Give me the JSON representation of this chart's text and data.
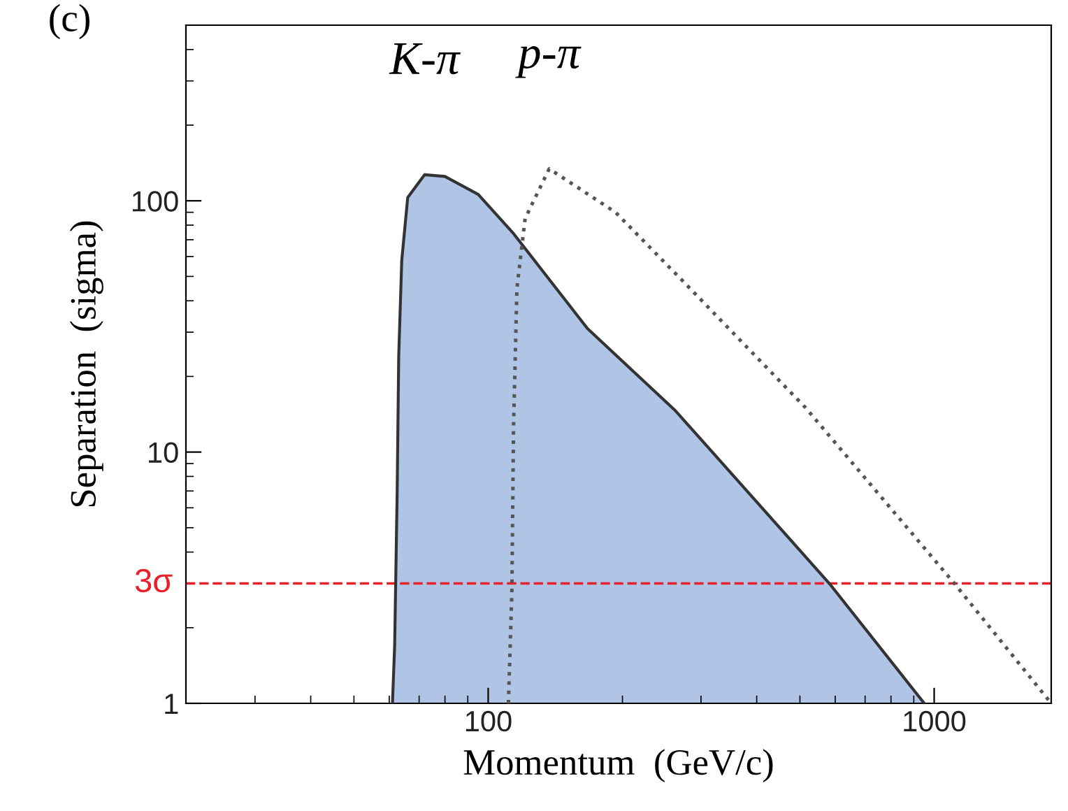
{
  "chart_data": {
    "type": "area",
    "xlabel": "Momentum  (GeV/c)",
    "ylabel": "Separation  (sigma)",
    "log": "xy",
    "xlim": [
      21,
      1830
    ],
    "ylim": [
      1,
      500
    ],
    "xticks": [
      100,
      1000
    ],
    "yticks": [
      1,
      10,
      100
    ],
    "grid": false,
    "legend": false,
    "annotations": [
      "(c)"
    ],
    "series": [
      {
        "name": "K-π",
        "color": "#b0c4e6",
        "line_style": "solid",
        "x": [
          61,
          61.7,
          62.5,
          63,
          64,
          66,
          72,
          80,
          95,
          114,
          167,
          263,
          582,
          950
        ],
        "values": [
          1,
          1.7,
          6.9,
          24,
          58,
          103,
          127,
          125,
          106,
          74,
          31,
          14.6,
          3,
          1
        ]
      },
      {
        "name": "p-π",
        "type": "line",
        "color": "#555555",
        "line_style": "dotted",
        "x": [
          111,
          113,
          114,
          116,
          121,
          137,
          193,
          273,
          515,
          1110,
          1830
        ],
        "values": [
          1,
          2.8,
          12.8,
          45,
          85,
          134,
          90,
          48,
          15,
          3,
          1
        ]
      }
    ],
    "ref_lines": [
      {
        "axis": "y",
        "value": 3,
        "label": "3σ",
        "color": "#e8202a",
        "line_style": "dashed"
      }
    ]
  }
}
